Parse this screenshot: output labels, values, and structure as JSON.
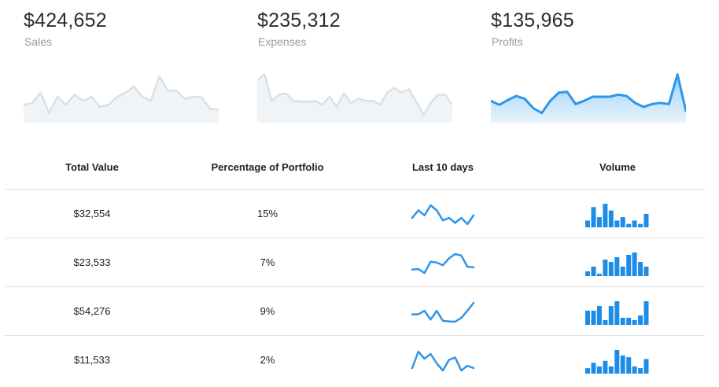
{
  "kpis": [
    {
      "value": "$424,652",
      "label": "Sales",
      "active": false,
      "trend": [
        4.0,
        4.5,
        7.0,
        2.0,
        6.0,
        4.0,
        6.5,
        5.0,
        6.0,
        3.5,
        4.0,
        6.0,
        7.0,
        8.5,
        6.0,
        5.0,
        11.0,
        7.5,
        7.5,
        5.5,
        6.0,
        5.8,
        3.0,
        2.8
      ]
    },
    {
      "value": "$235,312",
      "label": "Expenses",
      "active": false,
      "trend": [
        10.0,
        11.5,
        5.0,
        6.5,
        6.8,
        5.0,
        4.8,
        4.8,
        5.0,
        4.0,
        6.0,
        3.5,
        6.8,
        4.5,
        5.5,
        5.0,
        5.0,
        4.0,
        7.0,
        8.2,
        7.0,
        7.8,
        4.8,
        1.5,
        4.5,
        6.5,
        6.5,
        4.0
      ]
    },
    {
      "value": "$135,965",
      "label": "Profits",
      "active": true,
      "trend": [
        5.0,
        4.0,
        5.2,
        6.2,
        5.5,
        3.2,
        2.0,
        5.0,
        7.0,
        7.2,
        4.2,
        5.0,
        6.0,
        6.0,
        6.0,
        6.5,
        6.2,
        4.5,
        3.5,
        4.2,
        4.5,
        4.2,
        11.5,
        2.5
      ]
    }
  ],
  "table": {
    "headers": [
      "Total Value",
      "Percentage of Portfolio",
      "Last 10 days",
      "Volume"
    ],
    "rows": [
      {
        "total": "$32,554",
        "percent": "15%",
        "trend": [
          3,
          6,
          4,
          8,
          6,
          2,
          3,
          1,
          3,
          0.5,
          4
        ],
        "volume": [
          2,
          6,
          3,
          7,
          5,
          2,
          3,
          1,
          2,
          1,
          4
        ]
      },
      {
        "total": "$23,533",
        "percent": "7%",
        "trend": [
          2,
          2.2,
          0.8,
          4.8,
          4.5,
          3.5,
          6,
          7.5,
          7,
          3,
          2.8
        ],
        "volume": [
          1,
          2,
          0.5,
          3.5,
          3,
          4,
          2,
          4.5,
          5,
          3,
          2
        ]
      },
      {
        "total": "$54,276",
        "percent": "9%",
        "trend": [
          4.5,
          4.5,
          6.5,
          1.5,
          6.5,
          0.8,
          0.5,
          0.3,
          2.5,
          6.5,
          11
        ],
        "volume": [
          3,
          3,
          4,
          1,
          4,
          5,
          1.5,
          1.5,
          1,
          2,
          5
        ]
      },
      {
        "total": "$11,533",
        "percent": "2%",
        "trend": [
          3,
          10,
          7,
          9,
          5,
          2,
          6.5,
          7.5,
          2,
          4,
          3
        ],
        "volume": [
          1.5,
          3,
          2,
          3.5,
          2,
          6.5,
          5,
          4.5,
          2,
          1.5,
          4
        ]
      }
    ]
  },
  "colors": {
    "active_line": "#2d95ea",
    "active_fill_top": "#9bd0f8",
    "active_fill_bottom": "#e8f4fd",
    "inactive_line": "#d7e1e8",
    "inactive_fill": "#f1f4f7",
    "bar": "#1e8ce6"
  }
}
